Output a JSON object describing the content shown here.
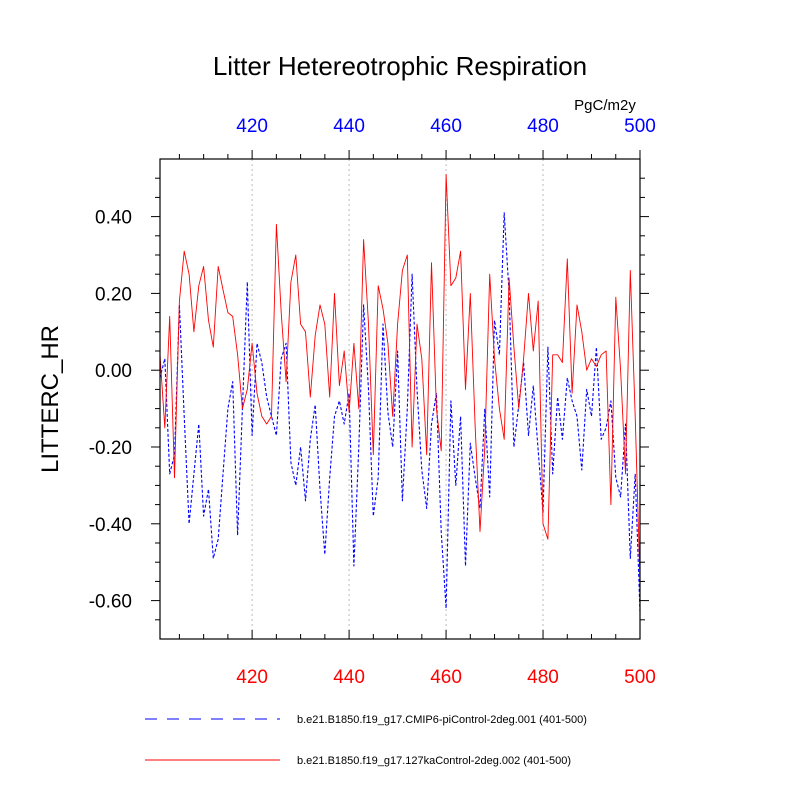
{
  "chart_data": {
    "type": "line",
    "title": "Litter Hetereotrophic Respiration",
    "units": "PgC/m2y",
    "ylabel": "LITTERC_HR",
    "xlabel": "",
    "xlim": [
      401,
      500
    ],
    "ylim": [
      -0.7,
      0.55
    ],
    "x_ticks": [
      420,
      440,
      460,
      480,
      500
    ],
    "x_tick_labels": [
      "420",
      "440",
      "460",
      "480",
      "500"
    ],
    "y_ticks": [
      0.4,
      0.2,
      0.0,
      -0.2,
      -0.4,
      -0.6
    ],
    "y_tick_labels": [
      "0.40",
      "0.20",
      "0.00",
      "-0.20",
      "-0.40",
      "-0.60"
    ],
    "colors": {
      "bottom_axis_labels": "#ff0000",
      "top_axis_labels": "#0000ff",
      "gridlines": "#bbbbbb"
    },
    "x": [
      401,
      402,
      403,
      404,
      405,
      406,
      407,
      408,
      409,
      410,
      411,
      412,
      413,
      414,
      415,
      416,
      417,
      418,
      419,
      420,
      421,
      422,
      423,
      424,
      425,
      426,
      427,
      428,
      429,
      430,
      431,
      432,
      433,
      434,
      435,
      436,
      437,
      438,
      439,
      440,
      441,
      442,
      443,
      444,
      445,
      446,
      447,
      448,
      449,
      450,
      451,
      452,
      453,
      454,
      455,
      456,
      457,
      458,
      459,
      460,
      461,
      462,
      463,
      464,
      465,
      466,
      467,
      468,
      469,
      470,
      471,
      472,
      473,
      474,
      475,
      476,
      477,
      478,
      479,
      480,
      481,
      482,
      483,
      484,
      485,
      486,
      487,
      488,
      489,
      490,
      491,
      492,
      493,
      494,
      495,
      496,
      497,
      498,
      499,
      500
    ],
    "series": [
      {
        "name": "b.e21.B1850.f19_g17.CMIP6-piControl-2deg.001 (401-500)",
        "color": "#0000ff",
        "dash": "dashed",
        "values": [
          -0.02,
          0.03,
          -0.27,
          -0.22,
          0.17,
          -0.12,
          -0.4,
          -0.27,
          -0.14,
          -0.38,
          -0.31,
          -0.49,
          -0.44,
          -0.27,
          -0.1,
          -0.03,
          -0.43,
          -0.1,
          0.23,
          -0.17,
          0.07,
          0.02,
          -0.07,
          -0.12,
          -0.17,
          0.03,
          0.07,
          -0.24,
          -0.3,
          -0.2,
          -0.34,
          -0.18,
          -0.09,
          -0.31,
          -0.48,
          -0.28,
          -0.12,
          -0.08,
          -0.14,
          -0.06,
          -0.51,
          -0.2,
          0.17,
          -0.05,
          -0.38,
          -0.28,
          0.12,
          -0.11,
          -0.2,
          0.05,
          -0.34,
          -0.1,
          0.25,
          -0.05,
          -0.26,
          -0.36,
          -0.14,
          -0.06,
          -0.42,
          -0.62,
          -0.08,
          -0.3,
          -0.12,
          -0.51,
          -0.19,
          -0.28,
          -0.36,
          -0.1,
          -0.33,
          0.13,
          0.04,
          0.41,
          0.2,
          -0.2,
          -0.09,
          0.02,
          -0.17,
          -0.04,
          -0.21,
          -0.37,
          0.06,
          -0.27,
          -0.07,
          -0.18,
          -0.02,
          -0.08,
          -0.12,
          -0.26,
          -0.05,
          -0.12,
          0.06,
          -0.18,
          -0.15,
          -0.08,
          -0.28,
          -0.33,
          -0.14,
          -0.49,
          -0.27,
          -0.63
        ]
      },
      {
        "name": "b.e21.B1850.f19_g17.127kaControl-2deg.002 (401-500)",
        "color": "#ff0000",
        "dash": "solid",
        "values": [
          0.04,
          -0.15,
          0.14,
          -0.28,
          0.18,
          0.31,
          0.25,
          0.1,
          0.22,
          0.27,
          0.13,
          0.06,
          0.27,
          0.21,
          0.15,
          0.14,
          0.04,
          -0.1,
          -0.05,
          0.07,
          -0.06,
          -0.12,
          -0.14,
          -0.12,
          0.38,
          0.15,
          -0.03,
          0.23,
          0.3,
          0.12,
          0.1,
          -0.07,
          0.09,
          0.17,
          0.12,
          -0.07,
          0.2,
          -0.04,
          0.05,
          -0.11,
          0.07,
          -0.1,
          0.34,
          0.12,
          -0.22,
          0.22,
          0.16,
          0.07,
          -0.12,
          0.12,
          0.26,
          0.3,
          -0.2,
          0.12,
          0.03,
          -0.22,
          0.28,
          -0.1,
          -0.21,
          0.51,
          0.22,
          0.24,
          0.31,
          -0.05,
          0.2,
          -0.15,
          -0.42,
          -0.2,
          0.25,
          0.03,
          -0.1,
          -0.18,
          0.24,
          0.06,
          -0.1,
          0.03,
          0.2,
          0.05,
          0.18,
          -0.4,
          -0.44,
          0.04,
          0.04,
          0.02,
          0.29,
          -0.06,
          0.17,
          0.1,
          0.0,
          0.03,
          0.01,
          0.04,
          0.05,
          -0.35,
          0.19,
          0.0,
          -0.27,
          0.26,
          -0.12,
          -0.55
        ]
      }
    ]
  }
}
